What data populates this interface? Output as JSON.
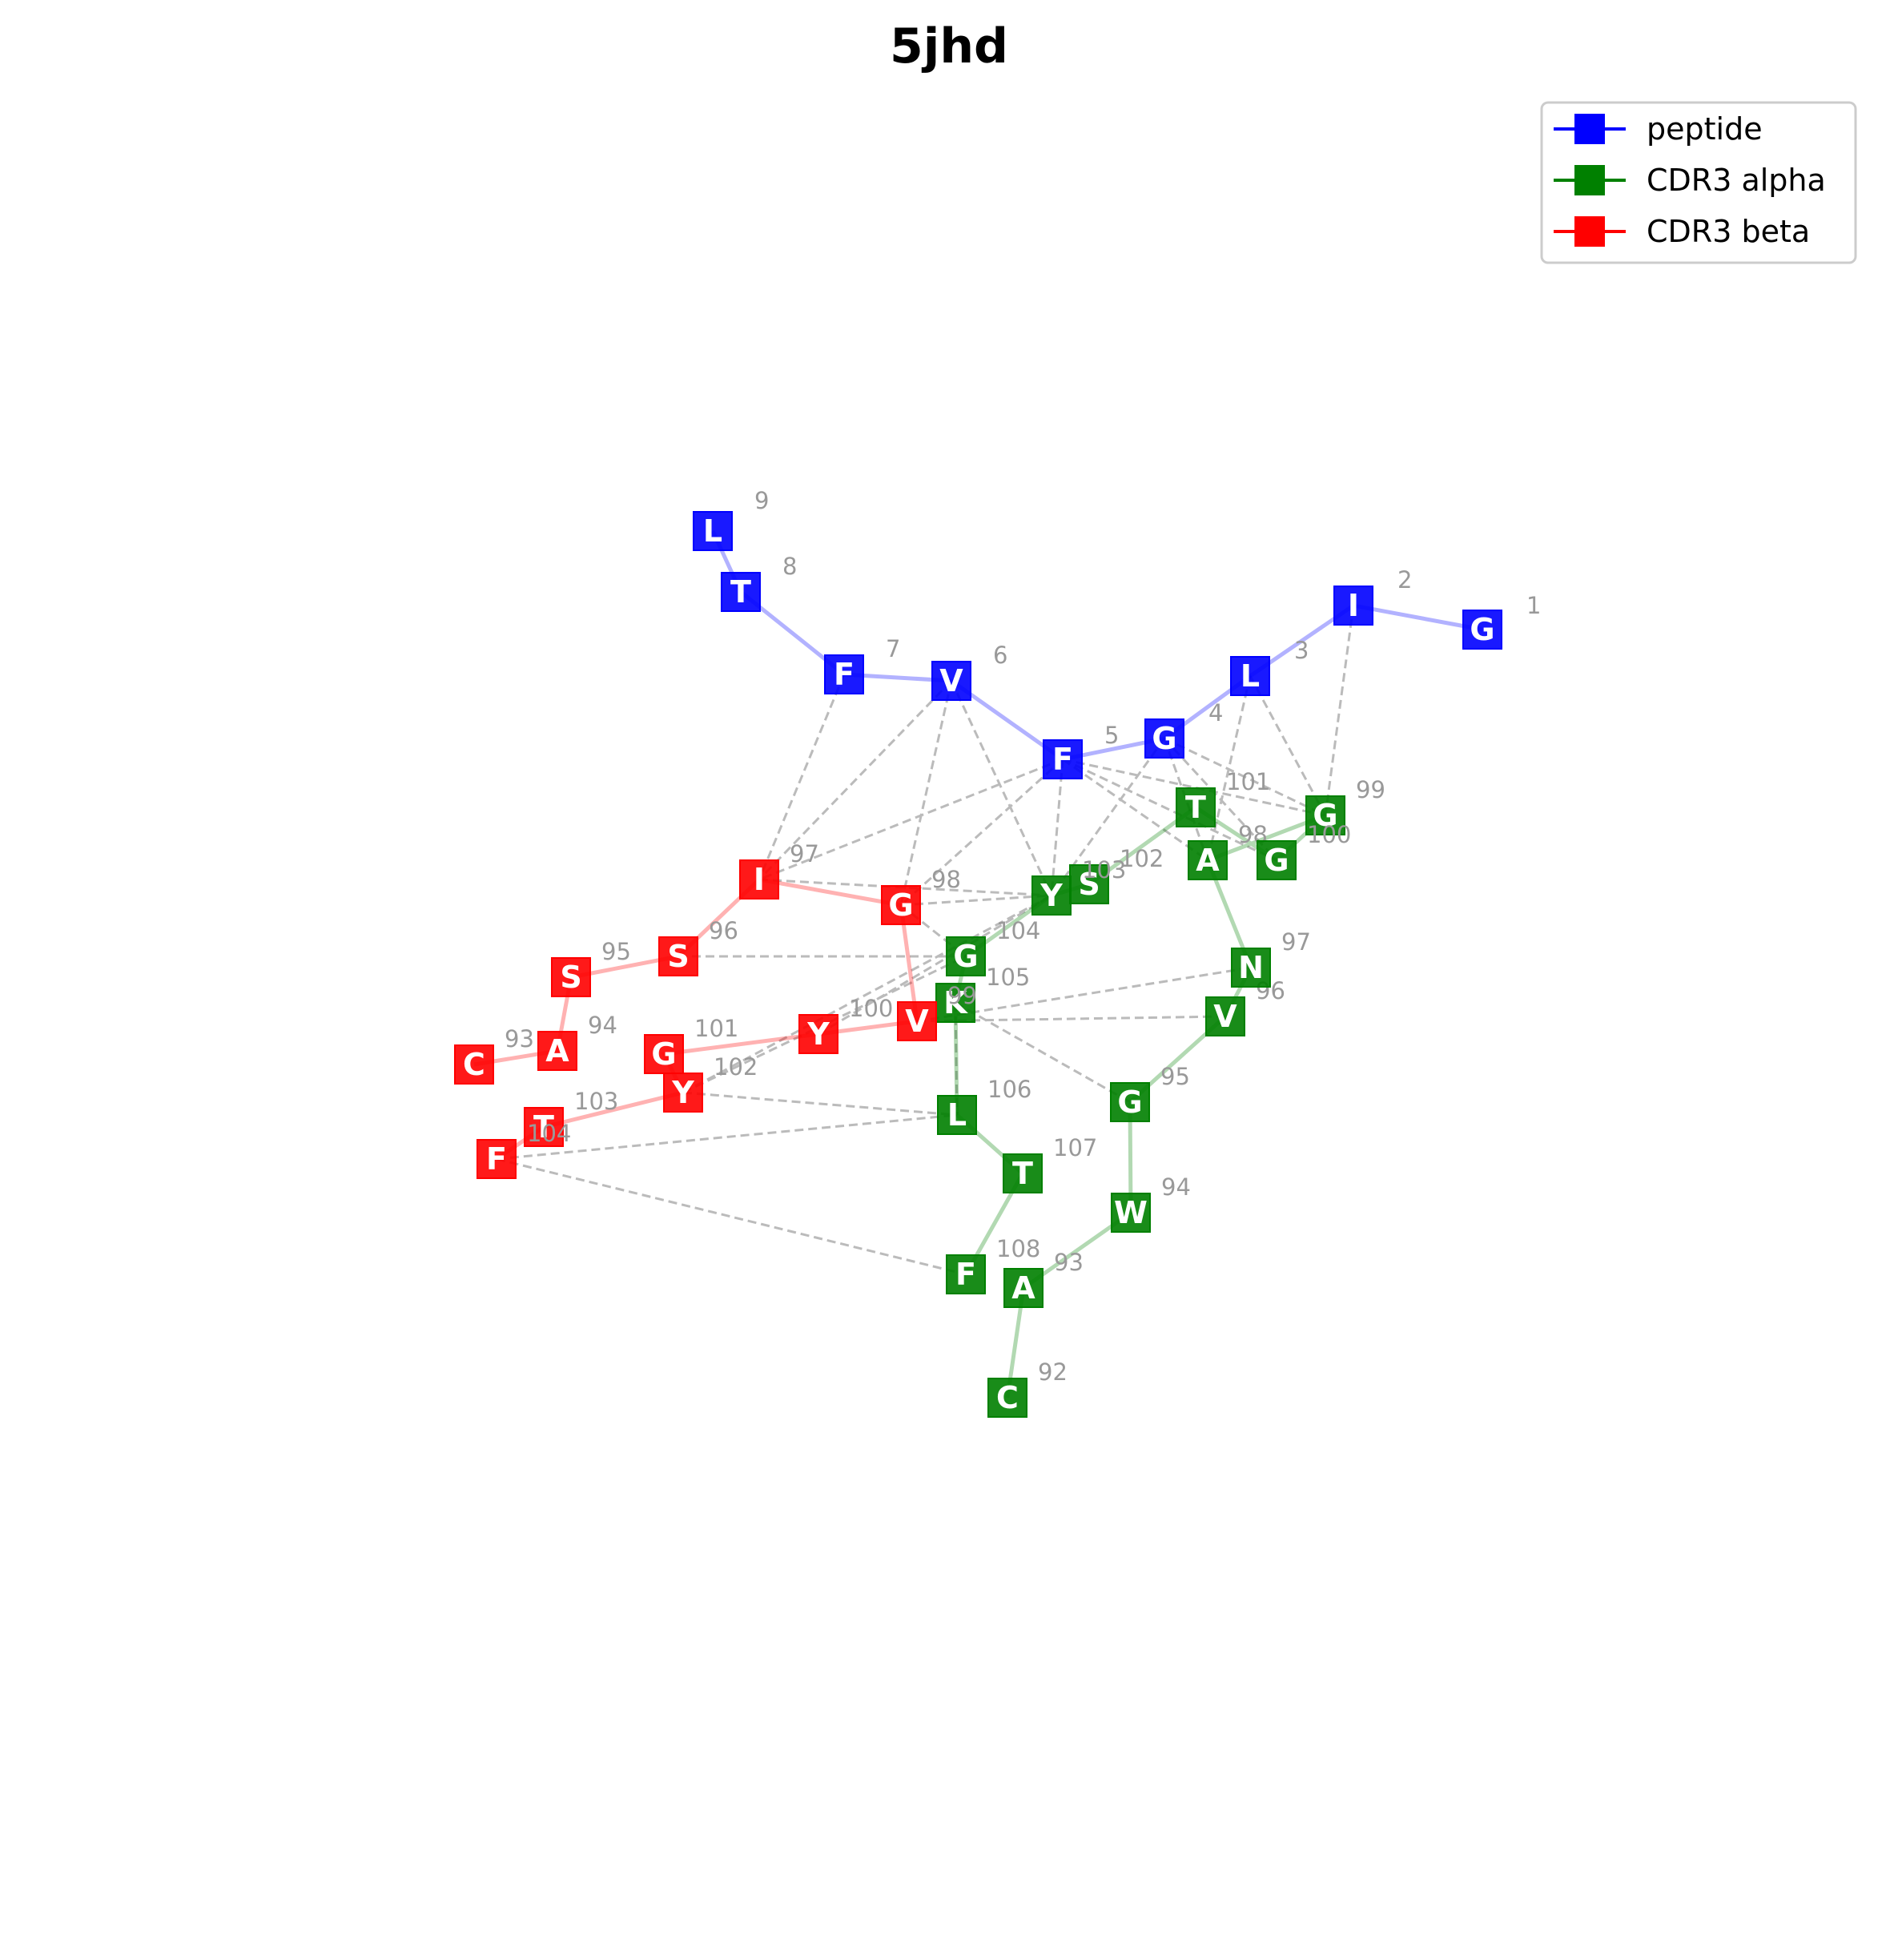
{
  "title": "5jhd",
  "colors": {
    "peptide": "#0000ff",
    "cdr3_alpha": "#008000",
    "cdr3_beta": "#ff0000",
    "contact": "#bbbbbb",
    "number": "#999999"
  },
  "legend": [
    {
      "key": "peptide",
      "label": "peptide",
      "color": "#0000ff"
    },
    {
      "key": "alpha",
      "label": "CDR3 alpha",
      "color": "#008000"
    },
    {
      "key": "beta",
      "label": "CDR3 beta",
      "color": "#ff0000"
    }
  ],
  "chains": {
    "peptide": [
      {
        "id": "p1",
        "letter": "G",
        "num": "1"
      },
      {
        "id": "p2",
        "letter": "I",
        "num": "2"
      },
      {
        "id": "p3",
        "letter": "L",
        "num": "3"
      },
      {
        "id": "p4",
        "letter": "G",
        "num": "4"
      },
      {
        "id": "p5",
        "letter": "F",
        "num": "5"
      },
      {
        "id": "p6",
        "letter": "V",
        "num": "6"
      },
      {
        "id": "p7",
        "letter": "F",
        "num": "7"
      },
      {
        "id": "p8",
        "letter": "T",
        "num": "8"
      },
      {
        "id": "p9",
        "letter": "L",
        "num": "9"
      }
    ],
    "alpha": [
      {
        "id": "a92",
        "letter": "C",
        "num": "92"
      },
      {
        "id": "a93",
        "letter": "A",
        "num": "93"
      },
      {
        "id": "a94",
        "letter": "W",
        "num": "94"
      },
      {
        "id": "a95",
        "letter": "G",
        "num": "95"
      },
      {
        "id": "a96",
        "letter": "V",
        "num": "96"
      },
      {
        "id": "a97",
        "letter": "N",
        "num": "97"
      },
      {
        "id": "a98",
        "letter": "A",
        "num": "98"
      },
      {
        "id": "a99",
        "letter": "G",
        "num": "99"
      },
      {
        "id": "a100",
        "letter": "G",
        "num": "100"
      },
      {
        "id": "a101",
        "letter": "T",
        "num": "101"
      },
      {
        "id": "a102",
        "letter": "S",
        "num": "102"
      },
      {
        "id": "a103",
        "letter": "Y",
        "num": "103"
      },
      {
        "id": "a104",
        "letter": "G",
        "num": "104"
      },
      {
        "id": "a105",
        "letter": "K",
        "num": "105"
      },
      {
        "id": "a106",
        "letter": "L",
        "num": "106"
      },
      {
        "id": "a107",
        "letter": "T",
        "num": "107"
      },
      {
        "id": "a108",
        "letter": "F",
        "num": "108"
      }
    ],
    "beta": [
      {
        "id": "b93",
        "letter": "C",
        "num": "93"
      },
      {
        "id": "b94",
        "letter": "A",
        "num": "94"
      },
      {
        "id": "b95",
        "letter": "S",
        "num": "95"
      },
      {
        "id": "b96",
        "letter": "S",
        "num": "96"
      },
      {
        "id": "b97",
        "letter": "I",
        "num": "97"
      },
      {
        "id": "b98",
        "letter": "G",
        "num": "98"
      },
      {
        "id": "b99",
        "letter": "V",
        "num": "99"
      },
      {
        "id": "b100",
        "letter": "Y",
        "num": "100"
      },
      {
        "id": "b101",
        "letter": "G",
        "num": "101"
      },
      {
        "id": "b102",
        "letter": "Y",
        "num": "102"
      },
      {
        "id": "b103",
        "letter": "T",
        "num": "103"
      },
      {
        "id": "b104",
        "letter": "F",
        "num": "104"
      }
    ]
  },
  "contacts": [
    [
      "p2",
      "a99"
    ],
    [
      "p3",
      "a99"
    ],
    [
      "p3",
      "a98"
    ],
    [
      "p4",
      "a99"
    ],
    [
      "p4",
      "a100"
    ],
    [
      "p4",
      "a98"
    ],
    [
      "p4",
      "a103"
    ],
    [
      "p5",
      "a99"
    ],
    [
      "p5",
      "a100"
    ],
    [
      "p5",
      "a98"
    ],
    [
      "p5",
      "a103"
    ],
    [
      "p5",
      "b97"
    ],
    [
      "p5",
      "b98"
    ],
    [
      "p6",
      "b97"
    ],
    [
      "p6",
      "b98"
    ],
    [
      "p6",
      "a103"
    ],
    [
      "p7",
      "b97"
    ],
    [
      "b97",
      "a103"
    ],
    [
      "b98",
      "a103"
    ],
    [
      "b98",
      "a104"
    ],
    [
      "b96",
      "a104"
    ],
    [
      "b99",
      "a97"
    ],
    [
      "b99",
      "a96"
    ],
    [
      "b100",
      "a103"
    ],
    [
      "b102",
      "a103"
    ],
    [
      "b102",
      "a104"
    ],
    [
      "b102",
      "a106"
    ],
    [
      "b104",
      "a106"
    ],
    [
      "b104",
      "a108"
    ],
    [
      "a105",
      "a95"
    ],
    [
      "a105",
      "a106"
    ]
  ]
}
